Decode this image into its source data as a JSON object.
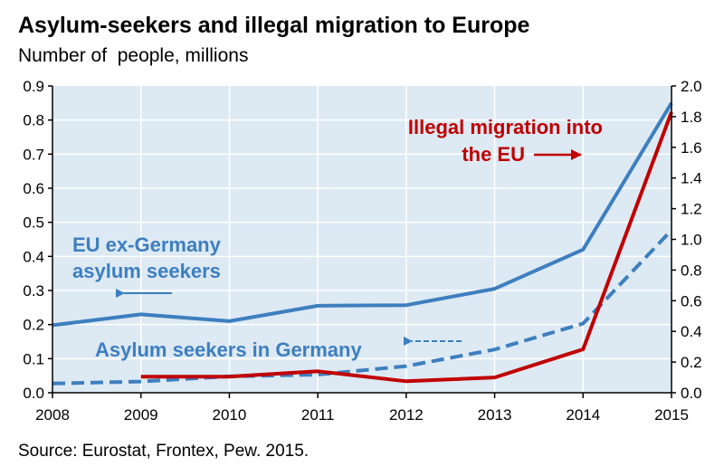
{
  "chart_data": {
    "type": "line",
    "title": "Asylum-seekers and illegal migration to Europe",
    "subtitle": "Number of  people, millions",
    "source": "Source: Eurostat, Frontex, Pew. 2015.",
    "x": [
      "2008",
      "2009",
      "2010",
      "2011",
      "2012",
      "2013",
      "2014",
      "2015"
    ],
    "y_left": {
      "lim": [
        0,
        0.9
      ],
      "ticks": [
        "0.0",
        "0.1",
        "0.2",
        "0.3",
        "0.4",
        "0.5",
        "0.6",
        "0.7",
        "0.8",
        "0.9"
      ]
    },
    "y_right": {
      "lim": [
        0,
        2.0
      ],
      "ticks": [
        "0.0",
        "0.2",
        "0.4",
        "0.6",
        "0.8",
        "1.0",
        "1.2",
        "1.4",
        "1.6",
        "1.8",
        "2.0"
      ]
    },
    "grid": true,
    "colors": {
      "blue": "#3d7fbf",
      "red": "#c00000",
      "plot_bg": "#dde9f3",
      "grid": "#ffffff"
    },
    "series": [
      {
        "name": "EU ex-Germany asylum seekers",
        "axis": "left",
        "style": "solid",
        "color": "#3d7fbf",
        "values": [
          0.198,
          0.23,
          0.21,
          0.255,
          0.257,
          0.305,
          0.42,
          0.85
        ]
      },
      {
        "name": "Asylum seekers in Germany",
        "axis": "left",
        "style": "dashed",
        "color": "#3d7fbf",
        "values": [
          0.027,
          0.033,
          0.048,
          0.053,
          0.078,
          0.127,
          0.203,
          0.477
        ]
      },
      {
        "name": "Illegal migration into the EU",
        "axis": "right",
        "style": "solid",
        "color": "#c00000",
        "values": [
          null,
          0.105,
          0.105,
          0.14,
          0.075,
          0.1,
          0.283,
          1.83
        ]
      }
    ],
    "annotations": {
      "eu_ex_germany": [
        "EU ex-Germany",
        "asylum seekers"
      ],
      "germany": "Asylum seekers in Germany",
      "illegal": [
        "Illegal migration into",
        "the EU"
      ]
    }
  }
}
